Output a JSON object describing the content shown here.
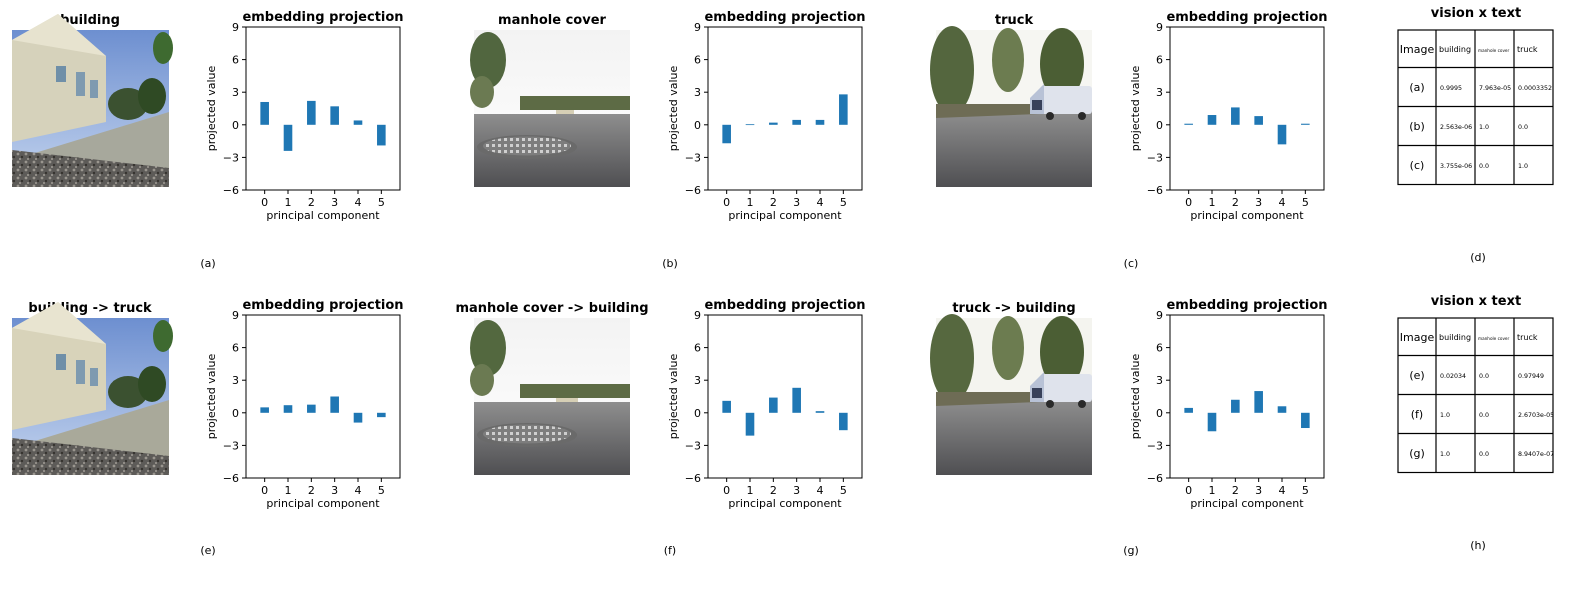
{
  "photo_titles": {
    "a": "building",
    "b": "manhole cover",
    "c": "truck",
    "e": "building -> truck",
    "f": "manhole cover -> building",
    "g": "truck -> building"
  },
  "panel_labels": [
    "(a)",
    "(b)",
    "(c)",
    "(d)",
    "(e)",
    "(f)",
    "(g)",
    "(h)"
  ],
  "chart_data": [
    {
      "id": "a",
      "type": "bar",
      "title": "embedding projection",
      "xlabel": "principal component",
      "ylabel": "projected value",
      "categories": [
        "0",
        "1",
        "2",
        "3",
        "4",
        "5"
      ],
      "values": [
        2.1,
        -2.4,
        2.2,
        1.7,
        0.4,
        -1.9
      ],
      "ylim": [
        -6,
        9
      ],
      "yticks": [
        "9",
        "6",
        "3",
        "0",
        "−3",
        "−6"
      ],
      "color": "#1f77b4"
    },
    {
      "id": "b",
      "type": "bar",
      "title": "embedding projection",
      "xlabel": "principal component",
      "ylabel": "projected value",
      "categories": [
        "0",
        "1",
        "2",
        "3",
        "4",
        "5"
      ],
      "values": [
        -1.7,
        0.05,
        0.2,
        0.45,
        0.45,
        2.8
      ],
      "ylim": [
        -6,
        9
      ],
      "yticks": [
        "9",
        "6",
        "3",
        "0",
        "−3",
        "−6"
      ],
      "color": "#1f77b4"
    },
    {
      "id": "c",
      "type": "bar",
      "title": "embedding projection",
      "xlabel": "principal component",
      "ylabel": "projected value",
      "categories": [
        "0",
        "1",
        "2",
        "3",
        "4",
        "5"
      ],
      "values": [
        0.1,
        0.9,
        1.6,
        0.8,
        -1.8,
        0.1
      ],
      "ylim": [
        -6,
        9
      ],
      "yticks": [
        "9",
        "6",
        "3",
        "0",
        "−3",
        "−6"
      ],
      "color": "#1f77b4"
    },
    {
      "id": "e",
      "type": "bar",
      "title": "embedding projection",
      "xlabel": "principal component",
      "ylabel": "projected value",
      "categories": [
        "0",
        "1",
        "2",
        "3",
        "4",
        "5"
      ],
      "values": [
        0.5,
        0.7,
        0.75,
        1.5,
        -0.9,
        -0.4
      ],
      "ylim": [
        -6,
        9
      ],
      "yticks": [
        "9",
        "6",
        "3",
        "0",
        "−3",
        "−6"
      ],
      "color": "#1f77b4"
    },
    {
      "id": "f",
      "type": "bar",
      "title": "embedding projection",
      "xlabel": "principal component",
      "ylabel": "projected value",
      "categories": [
        "0",
        "1",
        "2",
        "3",
        "4",
        "5"
      ],
      "values": [
        1.1,
        -2.1,
        1.4,
        2.3,
        0.15,
        -1.6
      ],
      "ylim": [
        -6,
        9
      ],
      "yticks": [
        "9",
        "6",
        "3",
        "0",
        "−3",
        "−6"
      ],
      "color": "#1f77b4"
    },
    {
      "id": "g",
      "type": "bar",
      "title": "embedding projection",
      "xlabel": "principal component",
      "ylabel": "projected value",
      "categories": [
        "0",
        "1",
        "2",
        "3",
        "4",
        "5"
      ],
      "values": [
        0.45,
        -1.7,
        1.2,
        2.0,
        0.6,
        -1.4
      ],
      "ylim": [
        -6,
        9
      ],
      "yticks": [
        "9",
        "6",
        "3",
        "0",
        "−3",
        "−6"
      ],
      "color": "#1f77b4"
    },
    {
      "id": "d",
      "type": "table",
      "title": "vision x text",
      "columns": [
        "Image",
        "building",
        "manhole cover",
        "truck"
      ],
      "rows": [
        [
          "(a)",
          "0.9995",
          "7.963e-05",
          "0.0003352"
        ],
        [
          "(b)",
          "2.563e-06",
          "1.0",
          "0.0"
        ],
        [
          "(c)",
          "3.755e-06",
          "0.0",
          "1.0"
        ]
      ]
    },
    {
      "id": "h",
      "type": "table",
      "title": "vision x text",
      "columns": [
        "Image",
        "building",
        "manhole cover",
        "truck"
      ],
      "rows": [
        [
          "(e)",
          "0.02034",
          "0.0",
          "0.97949"
        ],
        [
          "(f)",
          "1.0",
          "0.0",
          "2.6703e-05"
        ],
        [
          "(g)",
          "1.0",
          "0.0",
          "8.9407e-07"
        ]
      ]
    }
  ]
}
